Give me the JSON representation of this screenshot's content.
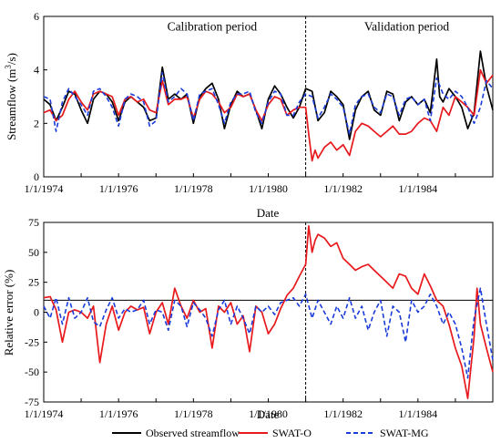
{
  "chart_data": [
    {
      "type": "line",
      "ylabel": "Streamflow (m³/s)",
      "xlabel": "Date",
      "xlim": [
        1974.0,
        1986.0
      ],
      "ylim": [
        0,
        6
      ],
      "x_ticks": [
        "1/1/1974",
        "1/1/1976",
        "1/1/1978",
        "1/1/1980",
        "1/1/1982",
        "1/1/1984"
      ],
      "y_ticks": [
        0,
        2,
        4,
        6
      ],
      "divider_x": 1981.0,
      "annotations": [
        {
          "text": "Calibration period",
          "x": 1978.5,
          "y": 5.6
        },
        {
          "text": "Validation period",
          "x": 1983.7,
          "y": 5.6
        }
      ],
      "series": [
        {
          "name": "Observed streamflow",
          "color": "#000000",
          "dash": "solid",
          "x": [
            1974.0,
            1974.17,
            1974.33,
            1974.5,
            1974.67,
            1974.83,
            1975.0,
            1975.17,
            1975.33,
            1975.5,
            1975.67,
            1975.83,
            1976.0,
            1976.17,
            1976.33,
            1976.5,
            1976.67,
            1976.83,
            1977.0,
            1977.17,
            1977.33,
            1977.5,
            1977.58,
            1977.67,
            1977.83,
            1978.0,
            1978.17,
            1978.33,
            1978.5,
            1978.67,
            1978.83,
            1979.0,
            1979.17,
            1979.33,
            1979.5,
            1979.67,
            1979.83,
            1980.0,
            1980.17,
            1980.33,
            1980.5,
            1980.67,
            1980.83,
            1981.0,
            1981.17,
            1981.33,
            1981.5,
            1981.67,
            1981.83,
            1982.0,
            1982.17,
            1982.33,
            1982.5,
            1982.67,
            1982.83,
            1983.0,
            1983.17,
            1983.33,
            1983.5,
            1983.67,
            1983.83,
            1984.0,
            1984.17,
            1984.33,
            1984.5,
            1984.58,
            1984.67,
            1984.83,
            1985.0,
            1985.17,
            1985.33,
            1985.5,
            1985.67,
            1985.83,
            1986.0
          ],
          "y": [
            2.9,
            2.7,
            2.1,
            2.6,
            3.2,
            3.1,
            2.5,
            2.0,
            2.9,
            3.2,
            3.1,
            2.8,
            2.1,
            2.8,
            3.0,
            2.8,
            2.6,
            2.1,
            2.2,
            4.1,
            2.9,
            3.1,
            3.0,
            2.9,
            3.1,
            2.0,
            3.0,
            3.3,
            3.5,
            2.9,
            1.8,
            2.7,
            3.2,
            3.0,
            3.1,
            2.5,
            1.8,
            2.9,
            3.4,
            3.1,
            2.6,
            2.2,
            2.6,
            3.3,
            3.2,
            2.1,
            2.4,
            3.2,
            3.0,
            2.7,
            1.4,
            2.5,
            3.0,
            3.2,
            2.5,
            2.3,
            3.2,
            3.1,
            2.1,
            2.8,
            3.0,
            2.7,
            2.9,
            2.4,
            4.4,
            3.0,
            2.8,
            3.3,
            3.0,
            2.6,
            1.8,
            2.4,
            4.7,
            3.4,
            2.5
          ]
        },
        {
          "name": "SWAT-O",
          "color": "#e8191c",
          "dash": "solid",
          "x": [
            1974.0,
            1974.17,
            1974.33,
            1974.5,
            1974.67,
            1974.83,
            1975.0,
            1975.17,
            1975.33,
            1975.5,
            1975.67,
            1975.83,
            1976.0,
            1976.17,
            1976.33,
            1976.5,
            1976.67,
            1976.83,
            1977.0,
            1977.17,
            1977.33,
            1977.5,
            1977.67,
            1977.83,
            1978.0,
            1978.17,
            1978.33,
            1978.5,
            1978.67,
            1978.83,
            1979.0,
            1979.17,
            1979.33,
            1979.5,
            1979.67,
            1979.83,
            1980.0,
            1980.17,
            1980.33,
            1980.5,
            1980.67,
            1980.83,
            1981.0,
            1981.08,
            1981.17,
            1981.25,
            1981.33,
            1981.5,
            1981.67,
            1981.83,
            1982.0,
            1982.17,
            1982.33,
            1982.5,
            1982.67,
            1982.83,
            1983.0,
            1983.17,
            1983.33,
            1983.5,
            1983.67,
            1983.83,
            1984.0,
            1984.17,
            1984.33,
            1984.5,
            1984.67,
            1984.83,
            1985.0,
            1985.17,
            1985.33,
            1985.5,
            1985.67,
            1985.83,
            1986.0
          ],
          "y": [
            2.4,
            2.5,
            2.1,
            2.3,
            2.9,
            3.2,
            2.8,
            2.5,
            3.1,
            3.2,
            3.1,
            3.0,
            2.3,
            2.9,
            3.0,
            2.8,
            2.9,
            2.5,
            2.4,
            3.6,
            2.7,
            2.9,
            2.9,
            3.0,
            2.2,
            2.9,
            3.2,
            3.1,
            2.8,
            2.4,
            2.6,
            3.1,
            3.0,
            3.1,
            2.5,
            2.1,
            2.7,
            3.0,
            2.9,
            2.3,
            2.5,
            2.6,
            2.6,
            1.6,
            0.6,
            1.0,
            0.7,
            1.1,
            1.3,
            1.0,
            1.2,
            0.8,
            1.7,
            2.0,
            1.9,
            1.7,
            1.5,
            1.7,
            1.9,
            1.6,
            1.6,
            1.7,
            2.0,
            2.2,
            2.1,
            1.7,
            2.6,
            2.3,
            3.0,
            2.8,
            2.6,
            2.3,
            4.0,
            3.5,
            3.8
          ]
        },
        {
          "name": "SWAT-MG",
          "color": "#1a3bdc",
          "dash": "dashed",
          "x": [
            1974.0,
            1974.17,
            1974.33,
            1974.5,
            1974.67,
            1974.83,
            1975.0,
            1975.17,
            1975.33,
            1975.5,
            1975.67,
            1975.83,
            1976.0,
            1976.17,
            1976.33,
            1976.5,
            1976.67,
            1976.83,
            1977.0,
            1977.17,
            1977.33,
            1977.5,
            1977.67,
            1977.83,
            1978.0,
            1978.17,
            1978.33,
            1978.5,
            1978.67,
            1978.83,
            1979.0,
            1979.17,
            1979.33,
            1979.5,
            1979.67,
            1979.83,
            1980.0,
            1980.17,
            1980.33,
            1980.5,
            1980.67,
            1980.83,
            1981.0,
            1981.17,
            1981.33,
            1981.5,
            1981.67,
            1981.83,
            1982.0,
            1982.17,
            1982.33,
            1982.5,
            1982.67,
            1982.83,
            1983.0,
            1983.17,
            1983.33,
            1983.5,
            1983.67,
            1983.83,
            1984.0,
            1984.17,
            1984.33,
            1984.5,
            1984.67,
            1984.83,
            1985.0,
            1985.17,
            1985.33,
            1985.5,
            1985.67,
            1985.83,
            1986.0
          ],
          "y": [
            3.0,
            2.9,
            1.7,
            2.8,
            3.3,
            3.0,
            2.7,
            2.3,
            3.2,
            3.3,
            3.0,
            2.6,
            1.9,
            2.9,
            3.1,
            3.0,
            2.8,
            1.9,
            2.1,
            3.9,
            2.8,
            3.0,
            3.3,
            3.1,
            2.1,
            3.1,
            3.2,
            3.3,
            2.7,
            2.0,
            2.8,
            3.1,
            3.1,
            3.2,
            2.4,
            2.0,
            2.8,
            3.2,
            3.1,
            2.3,
            2.3,
            2.8,
            3.1,
            3.0,
            2.2,
            2.6,
            3.1,
            2.9,
            2.6,
            1.6,
            2.7,
            3.0,
            3.1,
            2.6,
            2.4,
            3.1,
            3.0,
            2.3,
            2.9,
            3.0,
            2.7,
            2.9,
            2.1,
            3.7,
            3.1,
            2.9,
            3.2,
            3.0,
            2.6,
            2.0,
            2.6,
            3.6,
            3.3
          ]
        }
      ]
    },
    {
      "type": "line",
      "title": "Date",
      "ylabel": "Relative error (%)",
      "xlabel": "Date",
      "xlim": [
        1974.0,
        1986.0
      ],
      "ylim": [
        -75,
        75
      ],
      "x_ticks": [
        "1/1/1974",
        "1/1/1976",
        "1/1/1978",
        "1/1/1980",
        "1/1/1982",
        "1/1/1984"
      ],
      "y_ticks": [
        75,
        50,
        25,
        0,
        -25,
        -50,
        -75
      ],
      "divider_x": 1981.0,
      "reference_y": 10,
      "series": [
        {
          "name": "SWAT-O",
          "color": "#e8191c",
          "dash": "solid",
          "x": [
            1974.0,
            1974.17,
            1974.33,
            1974.5,
            1974.67,
            1974.83,
            1975.0,
            1975.17,
            1975.33,
            1975.5,
            1975.67,
            1975.83,
            1976.0,
            1976.17,
            1976.33,
            1976.5,
            1976.67,
            1976.83,
            1977.0,
            1977.17,
            1977.33,
            1977.5,
            1977.67,
            1977.83,
            1978.0,
            1978.17,
            1978.33,
            1978.5,
            1978.67,
            1978.83,
            1979.0,
            1979.17,
            1979.33,
            1979.5,
            1979.67,
            1979.83,
            1980.0,
            1980.17,
            1980.33,
            1980.5,
            1980.67,
            1980.83,
            1981.0,
            1981.08,
            1981.17,
            1981.25,
            1981.33,
            1981.5,
            1981.67,
            1981.83,
            1982.0,
            1982.17,
            1982.33,
            1982.5,
            1982.67,
            1982.83,
            1983.0,
            1983.17,
            1983.33,
            1983.5,
            1983.67,
            1983.83,
            1984.0,
            1984.17,
            1984.33,
            1984.5,
            1984.67,
            1984.83,
            1985.0,
            1985.17,
            1985.33,
            1985.5,
            1985.58,
            1985.67,
            1985.83,
            1986.0
          ],
          "y": [
            12,
            13,
            2,
            -25,
            0,
            2,
            0,
            -5,
            5,
            -42,
            -10,
            5,
            -15,
            0,
            5,
            2,
            4,
            -18,
            0,
            8,
            -10,
            20,
            5,
            -5,
            10,
            0,
            3,
            -30,
            5,
            0,
            8,
            -10,
            -3,
            -33,
            5,
            0,
            -18,
            -10,
            3,
            14,
            20,
            30,
            40,
            72,
            50,
            60,
            65,
            62,
            55,
            58,
            45,
            40,
            35,
            38,
            40,
            35,
            30,
            25,
            20,
            32,
            30,
            20,
            15,
            32,
            22,
            10,
            5,
            -10,
            -30,
            -45,
            -72,
            -20,
            20,
            -10,
            -30,
            -50
          ]
        },
        {
          "name": "SWAT-MG",
          "color": "#1a3bdc",
          "dash": "dashed",
          "x": [
            1974.0,
            1974.17,
            1974.33,
            1974.5,
            1974.67,
            1974.83,
            1975.0,
            1975.17,
            1975.33,
            1975.5,
            1975.67,
            1975.83,
            1976.0,
            1976.17,
            1976.33,
            1976.5,
            1976.67,
            1976.83,
            1977.0,
            1977.17,
            1977.33,
            1977.5,
            1977.67,
            1977.83,
            1978.0,
            1978.17,
            1978.33,
            1978.5,
            1978.67,
            1978.83,
            1979.0,
            1979.17,
            1979.33,
            1979.5,
            1979.67,
            1979.83,
            1980.0,
            1980.17,
            1980.33,
            1980.5,
            1980.67,
            1980.83,
            1981.0,
            1981.17,
            1981.33,
            1981.5,
            1981.67,
            1981.83,
            1982.0,
            1982.17,
            1982.33,
            1982.5,
            1982.67,
            1982.83,
            1983.0,
            1983.17,
            1983.33,
            1983.5,
            1983.67,
            1983.83,
            1984.0,
            1984.17,
            1984.33,
            1984.5,
            1984.67,
            1984.83,
            1985.0,
            1985.17,
            1985.33,
            1985.5,
            1985.67,
            1985.83,
            1986.0
          ],
          "y": [
            5,
            -5,
            12,
            -10,
            12,
            -5,
            0,
            12,
            -8,
            -12,
            2,
            12,
            -5,
            3,
            0,
            2,
            10,
            -10,
            2,
            0,
            -15,
            10,
            5,
            -12,
            8,
            2,
            -5,
            -20,
            2,
            10,
            -10,
            5,
            -5,
            -18,
            5,
            0,
            5,
            -2,
            8,
            10,
            12,
            5,
            15,
            -5,
            10,
            0,
            -10,
            5,
            -5,
            12,
            -5,
            5,
            -15,
            0,
            10,
            -20,
            5,
            0,
            -25,
            10,
            0,
            5,
            15,
            5,
            -10,
            0,
            -10,
            -30,
            -55,
            -5,
            20,
            -10,
            -40
          ]
        }
      ]
    }
  ],
  "legend": {
    "placement": "bottom",
    "items": [
      {
        "label": "Observed streamflow",
        "color": "#000000",
        "dash": "solid"
      },
      {
        "label": "SWAT-O",
        "color": "#e8191c",
        "dash": "solid"
      },
      {
        "label": "SWAT-MG",
        "color": "#1a3bdc",
        "dash": "dashed"
      }
    ]
  }
}
